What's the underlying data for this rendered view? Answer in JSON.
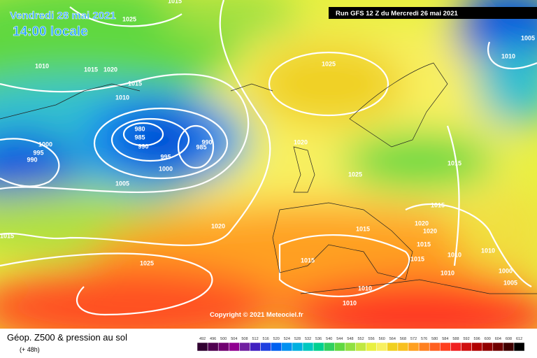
{
  "header": {
    "date": "Vendredi 28 mai 2021",
    "time": "14:00 locale",
    "run": "Run GFS 12 Z du Mercredi 26 mai 2021"
  },
  "isobar_labels": [
    1015,
    1025,
    1020,
    1010,
    1015,
    1015,
    1010,
    1025,
    1000,
    995,
    990,
    980,
    985,
    990,
    995,
    1000,
    990,
    985,
    1005,
    1020,
    1025,
    1015,
    1015,
    1020,
    1015,
    1015,
    1020,
    1020,
    1015,
    1010,
    1010,
    1015,
    1015,
    1010,
    1025,
    1000,
    1005,
    1010,
    1010,
    1010,
    1005
  ],
  "copyright": "Copyright © 2021 Meteociel.fr",
  "footer": {
    "title": "Géop. Z500 & pression au sol",
    "lead": "(+ 48h)"
  },
  "scale": [
    492,
    496,
    500,
    504,
    508,
    512,
    516,
    520,
    524,
    528,
    532,
    536,
    540,
    544,
    548,
    552,
    556,
    560,
    564,
    568,
    572,
    576,
    580,
    584,
    588,
    592,
    596,
    600,
    604,
    608,
    612
  ]
}
